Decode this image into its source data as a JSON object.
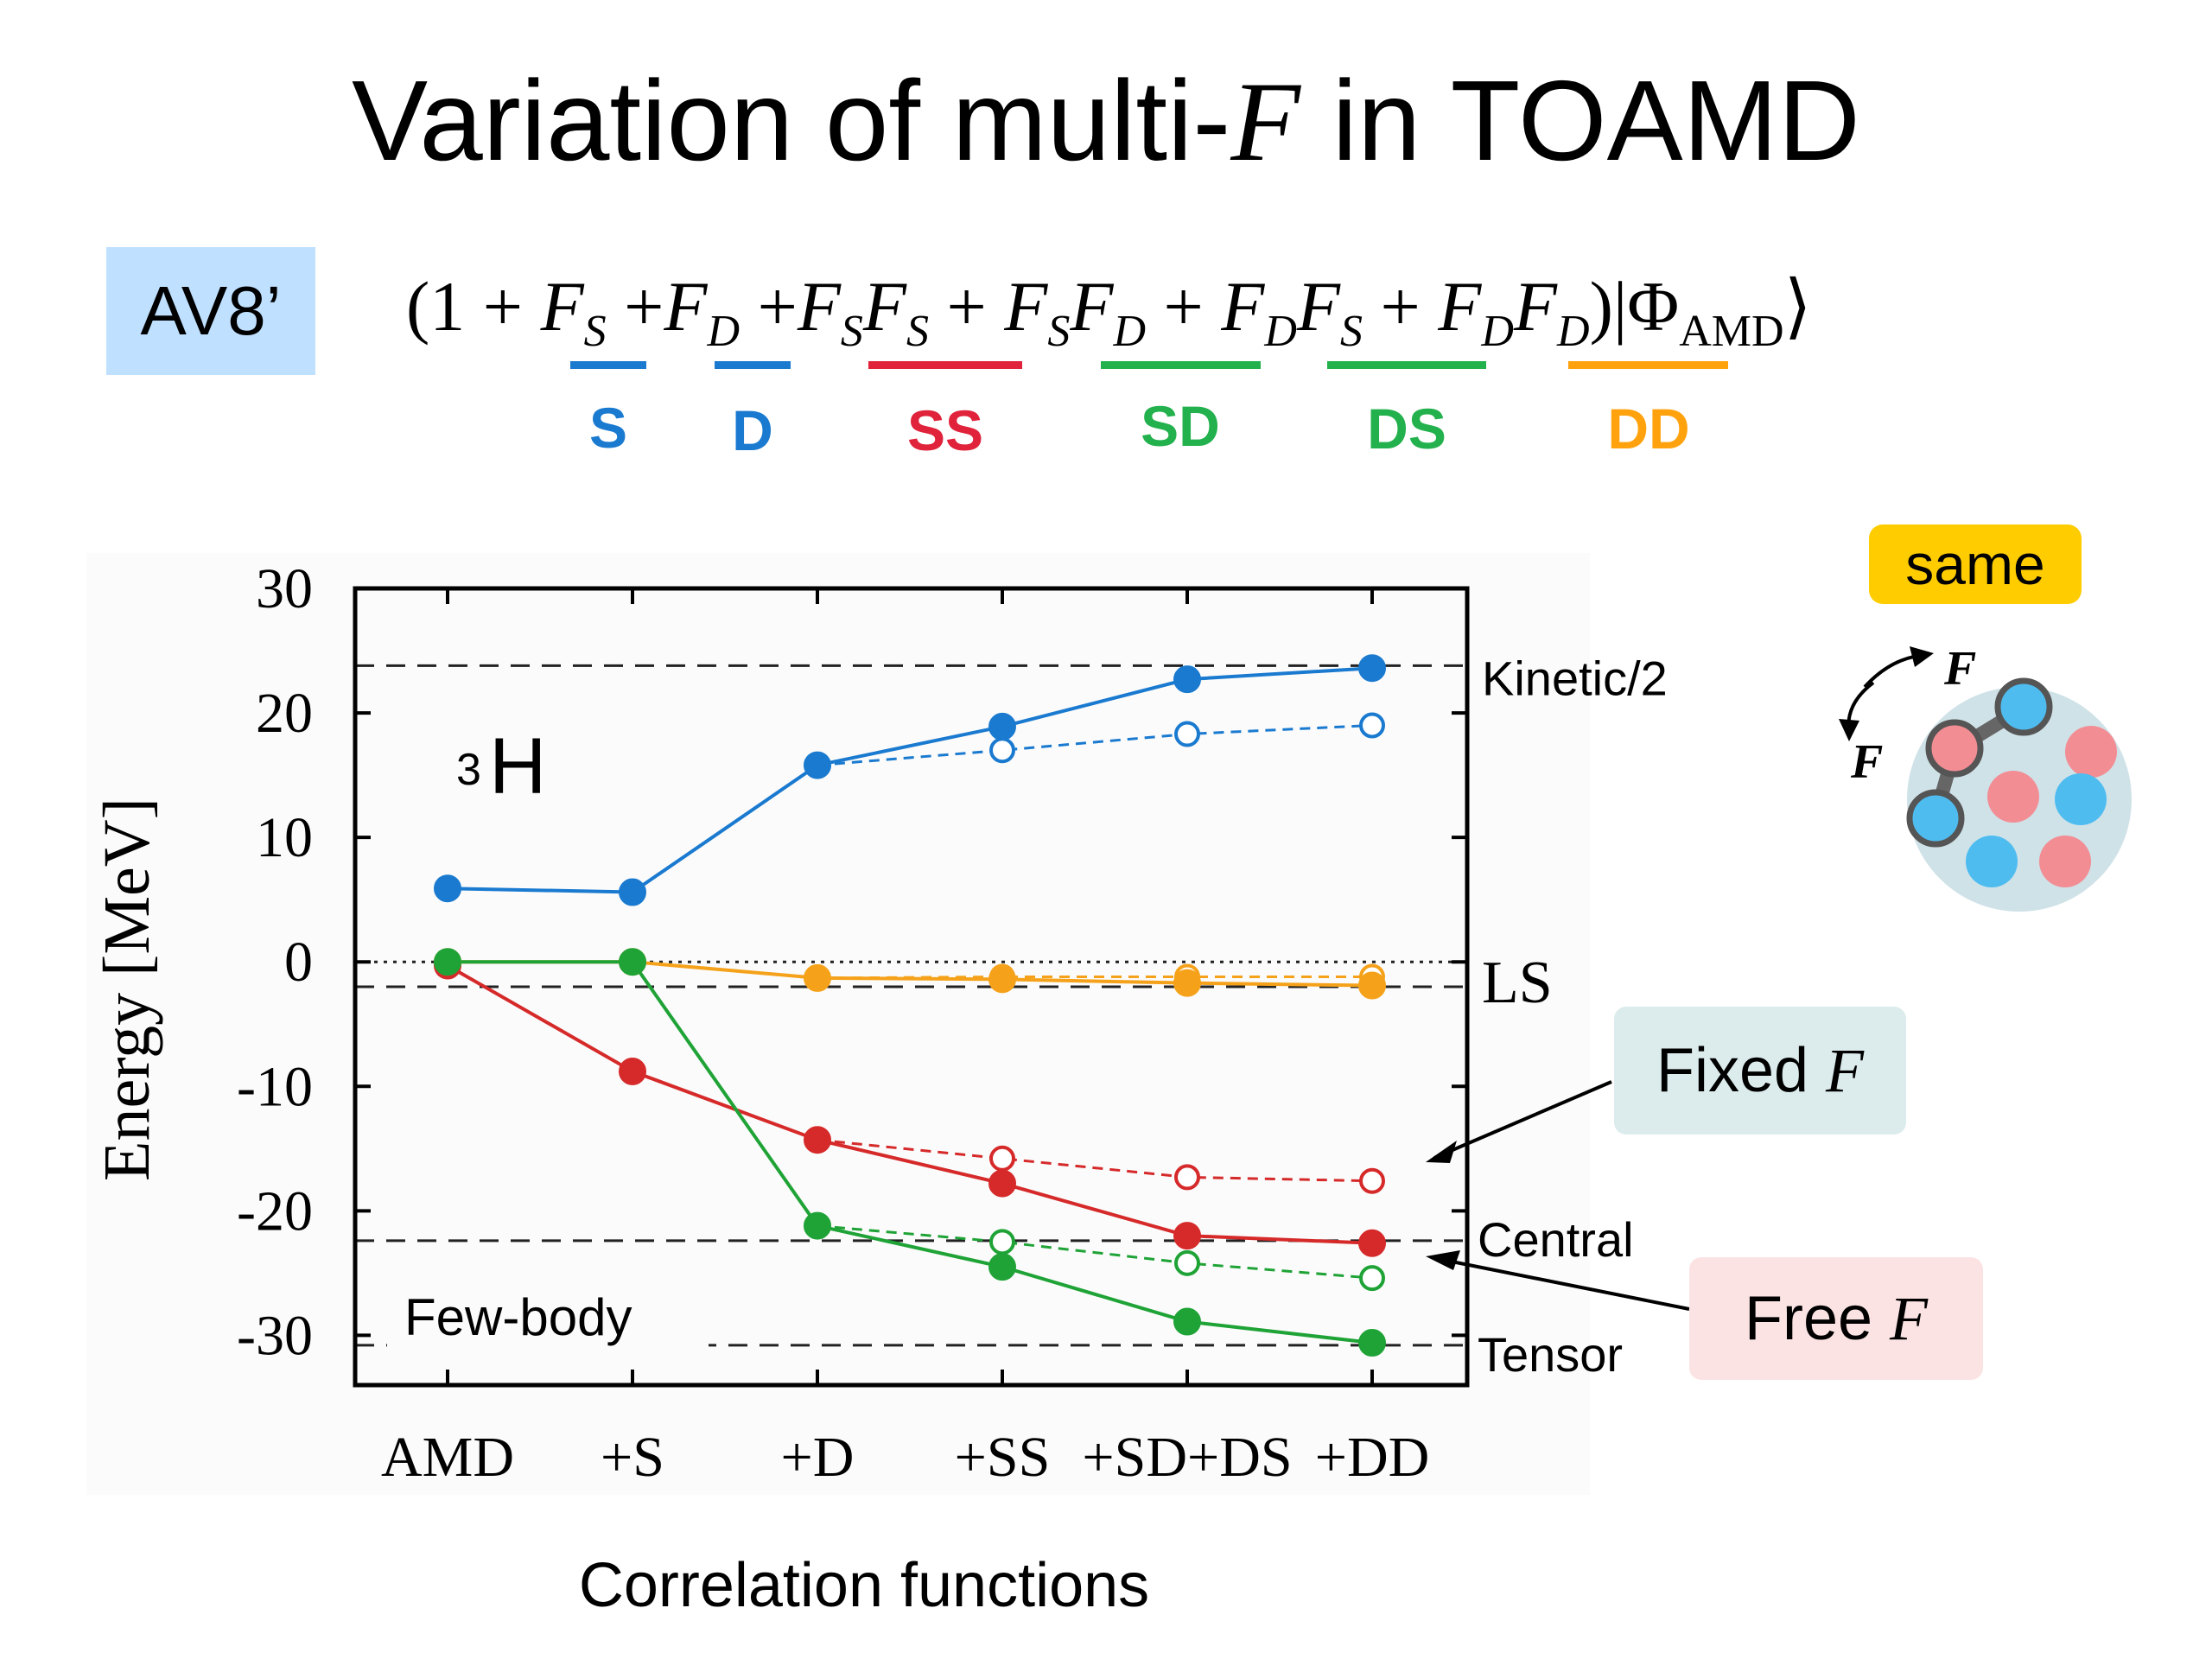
{
  "slide": {
    "title_prefix": "Variation of multi-",
    "title_var": "F",
    "title_suffix": " in TOAMD"
  },
  "formula": {
    "badge": "AV8’",
    "open": "(1 + ",
    "terms": [
      {
        "text": "F",
        "sub": "S",
        "prefix": ""
      },
      {
        "text": "F",
        "sub": "D",
        "prefix": " +"
      },
      {
        "text": "F",
        "sub": "S",
        "text2": "F",
        "sub2": "S",
        "prefix": " +"
      },
      {
        "text": "F",
        "sub": "S",
        "text2": "F",
        "sub2": "D",
        "prefix": " + "
      },
      {
        "text": "F",
        "sub": "D",
        "text2": "F",
        "sub2": "S",
        "prefix": " + "
      },
      {
        "text": "F",
        "sub": "D",
        "text2": "F",
        "sub2": "D",
        "prefix": " + "
      }
    ],
    "close": ")|Φ",
    "close_sub": "AMD",
    "close_end": "⟩",
    "term_labels": [
      {
        "label": "S",
        "color": "#1a7ad0"
      },
      {
        "label": "D",
        "color": "#1a7ad0"
      },
      {
        "label": "SS",
        "color": "#e0223a"
      },
      {
        "label": "SD",
        "color": "#22b14c"
      },
      {
        "label": "DS",
        "color": "#22b14c"
      },
      {
        "label": "DD",
        "color": "#ffa20e"
      }
    ]
  },
  "annotations": {
    "nucleus": "H",
    "nucleus_mass": "3",
    "few_body": "Few-body",
    "fixed_prefix": "Fixed ",
    "fixed_var": "F",
    "free_prefix": "Free ",
    "free_var": "F",
    "same": "same",
    "diagram_f_top": "F",
    "diagram_f_left": "F"
  },
  "chart_data": {
    "type": "line",
    "title": "",
    "xlabel": "Correlation functions",
    "ylabel": "Energy [MeV]",
    "categories": [
      "AMD",
      "+S",
      "+D",
      "+SS",
      "+SD+DS",
      "+DD"
    ],
    "ylim": [
      -34,
      30
    ],
    "yticks": [
      30,
      20,
      10,
      0,
      -10,
      -20,
      -30
    ],
    "grid": false,
    "reference_lines": [
      {
        "label": "Kinetic/2",
        "y": 23.8,
        "style": "dashed"
      },
      {
        "label": "LS",
        "y": -2.0,
        "style": "dashed"
      },
      {
        "label": "Central",
        "y": -22.4,
        "style": "dashed"
      },
      {
        "label": "Tensor",
        "y": -30.8,
        "style": "dashed"
      },
      {
        "label": "",
        "y": 0,
        "style": "dotted"
      }
    ],
    "series": [
      {
        "component": "Kinetic/2",
        "F": "Free",
        "color": "#1a7ad0",
        "filled": true,
        "dashed": false,
        "values": [
          5.9,
          5.6,
          15.8,
          18.9,
          22.7,
          23.6
        ]
      },
      {
        "component": "Kinetic/2",
        "F": "Fixed",
        "color": "#1a7ad0",
        "filled": false,
        "dashed": true,
        "values": [
          null,
          null,
          15.8,
          17.0,
          18.3,
          19.0
        ]
      },
      {
        "component": "LS",
        "F": "Free",
        "color": "#f5a21a",
        "filled": true,
        "dashed": false,
        "values": [
          0.0,
          0.0,
          -1.3,
          -1.4,
          -1.7,
          -1.9
        ]
      },
      {
        "component": "LS",
        "F": "Fixed",
        "color": "#f5a21a",
        "filled": false,
        "dashed": true,
        "values": [
          null,
          null,
          -1.3,
          -1.2,
          -1.2,
          -1.2
        ]
      },
      {
        "component": "Central",
        "F": "Free",
        "color": "#d62a2a",
        "filled": true,
        "dashed": false,
        "values": [
          -0.3,
          -8.8,
          -14.3,
          -17.8,
          -22.0,
          -22.6
        ]
      },
      {
        "component": "Central",
        "F": "Fixed",
        "color": "#d62a2a",
        "filled": false,
        "dashed": true,
        "values": [
          null,
          null,
          -14.3,
          -15.8,
          -17.3,
          -17.6
        ]
      },
      {
        "component": "Tensor",
        "F": "Free",
        "color": "#1fa336",
        "filled": true,
        "dashed": false,
        "values": [
          0.0,
          0.0,
          -21.2,
          -24.5,
          -28.9,
          -30.6
        ]
      },
      {
        "component": "Tensor",
        "F": "Fixed",
        "color": "#1fa336",
        "filled": false,
        "dashed": true,
        "values": [
          null,
          null,
          -21.2,
          -22.5,
          -24.2,
          -25.4
        ]
      }
    ]
  }
}
